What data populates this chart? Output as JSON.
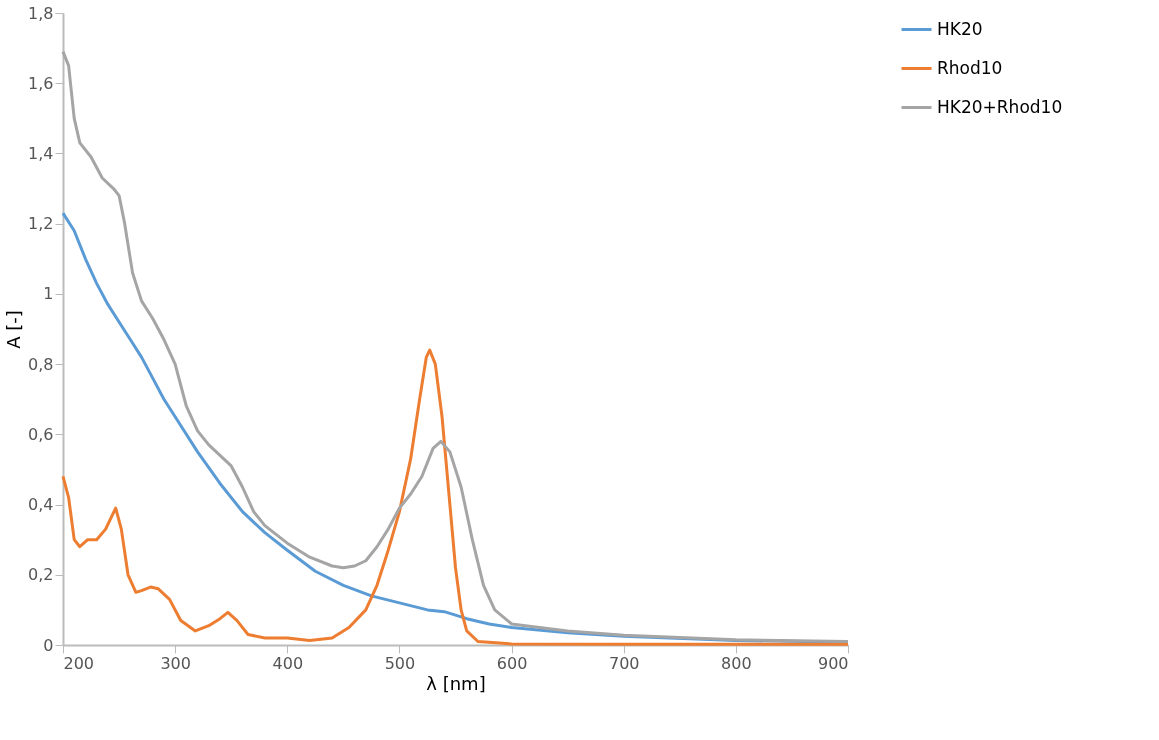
{
  "chart_data": {
    "type": "line",
    "xlabel": "λ [nm]",
    "ylabel": "A [-]",
    "xlim": [
      200,
      900
    ],
    "xticks": [
      200,
      300,
      400,
      500,
      600,
      700,
      800,
      900
    ],
    "ylim": [
      0,
      1.8
    ],
    "yticks": [
      0,
      {
        "value": 0.2,
        "label": "0,2"
      },
      {
        "value": 0.4,
        "label": "0,4"
      },
      {
        "value": 0.6,
        "label": "0,6"
      },
      {
        "value": 0.8,
        "label": "0,8"
      },
      1,
      {
        "value": 1.2,
        "label": "1,2"
      },
      {
        "value": 1.4,
        "label": "1,4"
      },
      {
        "value": 1.6,
        "label": "1,6"
      },
      {
        "value": 1.8,
        "label": "1,8"
      }
    ],
    "grid": false,
    "legend": "right",
    "marker": "none",
    "line_style": "solid",
    "series": [
      {
        "name": "HK20",
        "color": "#5b9bd5",
        "x": [
          200,
          210,
          220,
          230,
          240,
          250,
          260,
          270,
          280,
          290,
          300,
          320,
          340,
          360,
          380,
          400,
          425,
          450,
          475,
          500,
          525,
          540,
          560,
          580,
          600,
          650,
          700,
          800,
          900
        ],
        "values": [
          1.23,
          1.18,
          1.1,
          1.03,
          0.97,
          0.92,
          0.87,
          0.82,
          0.76,
          0.7,
          0.65,
          0.55,
          0.46,
          0.38,
          0.32,
          0.27,
          0.21,
          0.17,
          0.14,
          0.12,
          0.1,
          0.095,
          0.075,
          0.06,
          0.05,
          0.035,
          0.025,
          0.013,
          0.008
        ]
      },
      {
        "name": "Rhod10",
        "color": "#ed7d31",
        "x": [
          200,
          205,
          210,
          215,
          222,
          230,
          238,
          247,
          252,
          258,
          265,
          270,
          278,
          285,
          295,
          305,
          318,
          330,
          340,
          347,
          355,
          365,
          380,
          400,
          420,
          440,
          455,
          470,
          480,
          490,
          500,
          510,
          518,
          524,
          527,
          532,
          538,
          545,
          550,
          555,
          560,
          570,
          600,
          700,
          900
        ],
        "values": [
          0.48,
          0.42,
          0.3,
          0.28,
          0.3,
          0.3,
          0.33,
          0.39,
          0.33,
          0.2,
          0.15,
          0.155,
          0.165,
          0.16,
          0.13,
          0.07,
          0.04,
          0.055,
          0.075,
          0.093,
          0.07,
          0.03,
          0.02,
          0.02,
          0.013,
          0.02,
          0.05,
          0.1,
          0.17,
          0.27,
          0.38,
          0.53,
          0.7,
          0.82,
          0.84,
          0.8,
          0.65,
          0.4,
          0.22,
          0.1,
          0.04,
          0.01,
          0.003,
          0.002,
          0.002
        ]
      },
      {
        "name": "HK20+Rhod10",
        "color": "#a5a5a5",
        "x": [
          200,
          205,
          210,
          215,
          225,
          235,
          245,
          250,
          255,
          262,
          270,
          280,
          290,
          300,
          310,
          320,
          330,
          340,
          350,
          360,
          370,
          380,
          400,
          420,
          440,
          450,
          460,
          470,
          480,
          490,
          500,
          510,
          520,
          530,
          537,
          545,
          555,
          565,
          575,
          585,
          600,
          650,
          700,
          800,
          900
        ],
        "values": [
          1.69,
          1.65,
          1.5,
          1.43,
          1.39,
          1.33,
          1.3,
          1.28,
          1.2,
          1.06,
          0.98,
          0.93,
          0.87,
          0.8,
          0.68,
          0.61,
          0.57,
          0.54,
          0.51,
          0.45,
          0.38,
          0.34,
          0.29,
          0.25,
          0.225,
          0.22,
          0.225,
          0.24,
          0.28,
          0.33,
          0.39,
          0.43,
          0.48,
          0.56,
          0.58,
          0.55,
          0.45,
          0.3,
          0.17,
          0.1,
          0.06,
          0.04,
          0.028,
          0.015,
          0.01
        ]
      }
    ]
  }
}
